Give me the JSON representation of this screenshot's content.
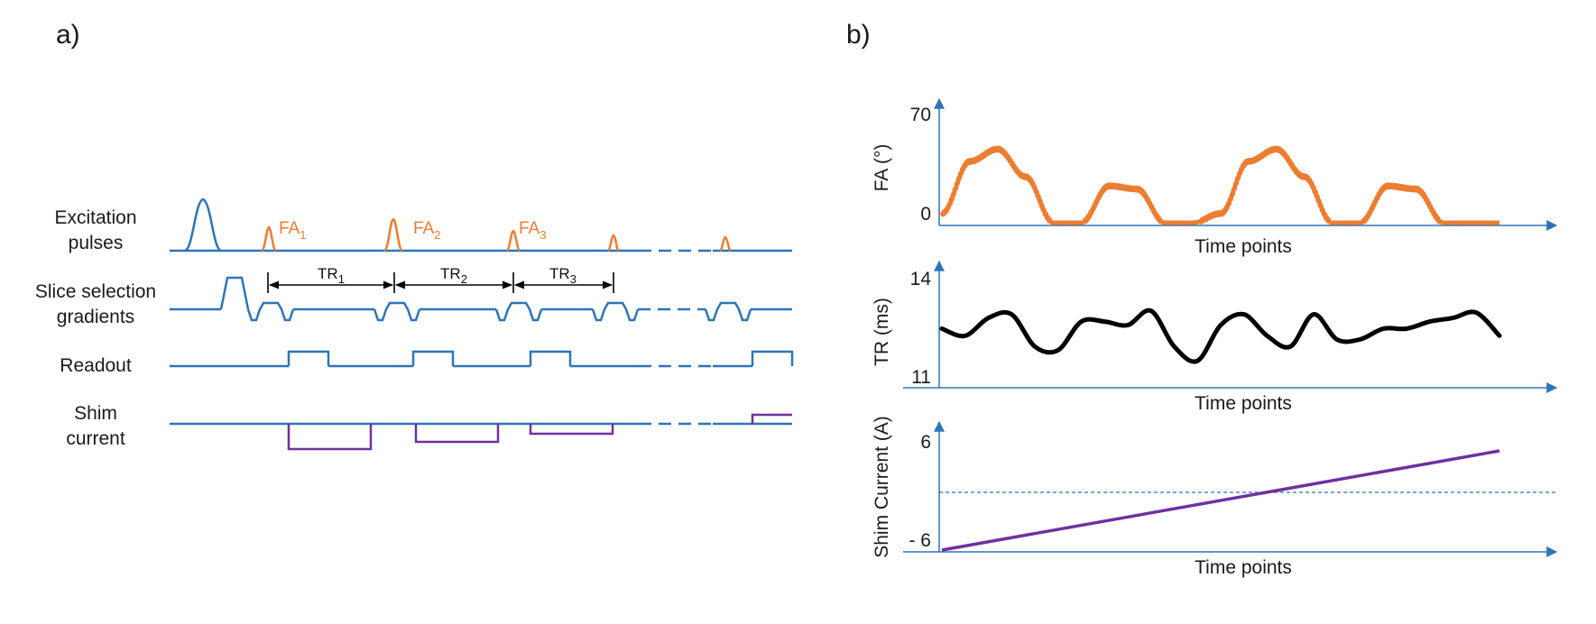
{
  "colors": {
    "timeline": "#2e75b6",
    "flip_angle": "#ed7d31",
    "shim": "#7030a0",
    "tr_curve": "#000000",
    "text": "#1a1a1a"
  },
  "panel_a": {
    "label": "a)",
    "rows": {
      "excitation": [
        "Excitation",
        "pulses"
      ],
      "slice": [
        "Slice selection",
        "gradients"
      ],
      "readout": [
        "Readout"
      ],
      "shim": [
        "Shim",
        "current"
      ]
    },
    "fa_labels": [
      {
        "main": "FA",
        "sub": "1"
      },
      {
        "main": "FA",
        "sub": "2"
      },
      {
        "main": "FA",
        "sub": "3"
      }
    ],
    "tr_labels": [
      {
        "main": "TR",
        "sub": "1"
      },
      {
        "main": "TR",
        "sub": "2"
      },
      {
        "main": "TR",
        "sub": "3"
      }
    ]
  },
  "panel_b": {
    "label": "b)",
    "charts": [
      {
        "id": "fa",
        "ylabel": "FA (°)",
        "xlabel": "Time points",
        "ytick_top": "70",
        "ytick_bottom": "0"
      },
      {
        "id": "tr",
        "ylabel": "TR (ms)",
        "xlabel": "Time points",
        "ytick_top": "14",
        "ytick_bottom": "11"
      },
      {
        "id": "shim",
        "ylabel": "Shim Current (A)",
        "xlabel": "Time points",
        "ytick_top": "6",
        "ytick_bottom": "- 6"
      }
    ]
  },
  "chart_data": [
    {
      "type": "line",
      "title": "",
      "xlabel": "Time points",
      "ylabel": "FA (°)",
      "ylim": [
        0,
        70
      ],
      "x": [
        0,
        0.5,
        1,
        1.5,
        2,
        2.5,
        3,
        3.5,
        4,
        4.5,
        5,
        5.5,
        6,
        6.5,
        7,
        7.5,
        8,
        8.5,
        9,
        9.5,
        10
      ],
      "series": [
        {
          "name": "FA",
          "values": [
            6,
            40,
            48,
            30,
            0,
            0,
            24,
            22,
            0,
            0,
            6,
            40,
            48,
            30,
            0,
            0,
            24,
            22,
            0,
            0,
            0
          ]
        }
      ]
    },
    {
      "type": "line",
      "title": "",
      "xlabel": "Time points",
      "ylabel": "TR (ms)",
      "ylim": [
        11,
        14
      ],
      "x": [
        0,
        1,
        2,
        3,
        4,
        5,
        6,
        7,
        8,
        9,
        10,
        11,
        12,
        13,
        14,
        15,
        16,
        17,
        18,
        19,
        20,
        21,
        22,
        23,
        24
      ],
      "series": [
        {
          "name": "TR",
          "values": [
            12.5,
            12.3,
            12.8,
            12.9,
            12.0,
            11.9,
            12.7,
            12.7,
            12.6,
            13.0,
            12.0,
            11.6,
            12.6,
            12.9,
            12.3,
            12.0,
            12.9,
            12.2,
            12.2,
            12.5,
            12.5,
            12.7,
            12.8,
            12.95,
            12.3
          ]
        }
      ]
    },
    {
      "type": "line",
      "title": "",
      "xlabel": "Time points",
      "ylabel": "Shim Current (A)",
      "ylim": [
        -6,
        6
      ],
      "x": [
        0,
        1
      ],
      "series": [
        {
          "name": "Shim current",
          "values": [
            -6,
            5
          ]
        }
      ]
    }
  ]
}
